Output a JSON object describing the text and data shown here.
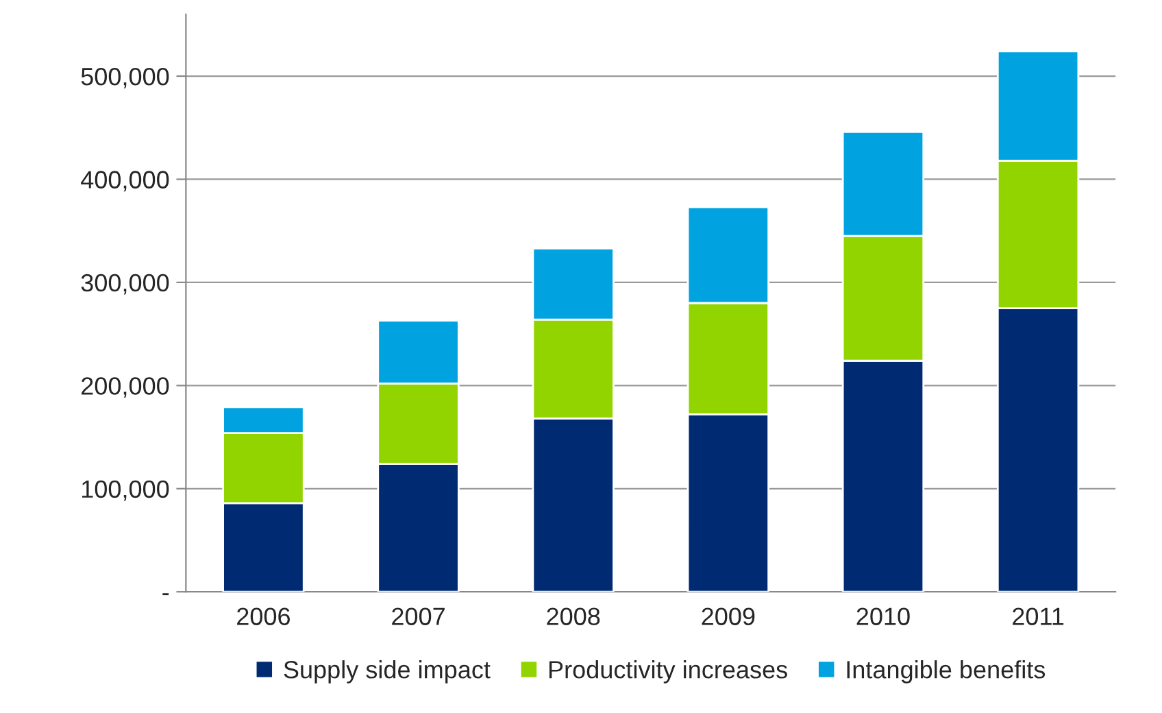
{
  "chart_data": {
    "type": "bar",
    "stacked": true,
    "categories": [
      "2006",
      "2007",
      "2008",
      "2009",
      "2010",
      "2011"
    ],
    "series": [
      {
        "name": "Supply side impact",
        "color": "#002b73",
        "values": [
          86000,
          124000,
          168000,
          172000,
          224000,
          275000
        ]
      },
      {
        "name": "Productivity increases",
        "color": "#92d400",
        "values": [
          68000,
          78000,
          96000,
          108000,
          121000,
          143000
        ]
      },
      {
        "name": "Intangible benefits",
        "color": "#00a3e0",
        "values": [
          25000,
          61000,
          69000,
          93000,
          101000,
          106000
        ]
      }
    ],
    "ylim": [
      0,
      560000
    ],
    "yticks": [
      {
        "value": 0,
        "label": "-"
      },
      {
        "value": 100000,
        "label": "100,000"
      },
      {
        "value": 200000,
        "label": "200,000"
      },
      {
        "value": 300000,
        "label": "300,000"
      },
      {
        "value": 400000,
        "label": "400,000"
      },
      {
        "value": 500000,
        "label": "500,000"
      }
    ],
    "grid": "y",
    "legend": "bottom"
  }
}
